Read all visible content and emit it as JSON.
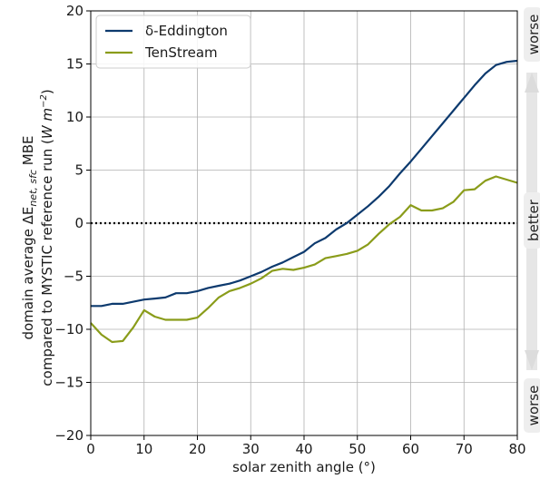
{
  "chart_data": {
    "type": "line",
    "xlabel": "solar zenith angle (°)",
    "ylabel_line1": "domain average ΔE",
    "ylabel_sub": "net, sfc",
    "ylabel_suffix": " MBE",
    "ylabel_line2_prefix": "compared to MYSTIC reference run (",
    "ylabel_unit_w": "W m",
    "ylabel_unit_exp": "−2",
    "ylabel_line2_suffix": ")",
    "xlim": [
      0,
      80
    ],
    "ylim": [
      -20,
      20
    ],
    "xticks": [
      0,
      10,
      20,
      30,
      40,
      50,
      60,
      70,
      80
    ],
    "yticks": [
      -20,
      -15,
      -10,
      -5,
      0,
      5,
      10,
      15,
      20
    ],
    "ytick_labels": [
      "−20",
      "−15",
      "−10",
      "−5",
      "0",
      "5",
      "10",
      "15",
      "20"
    ],
    "grid": true,
    "legend_position": "top-left",
    "reference_line": {
      "y": 0,
      "style": "dotted",
      "color": "#000000"
    },
    "series": [
      {
        "name": "δ-Eddington",
        "color": "#0d3a6e",
        "x": [
          0,
          2,
          4,
          6,
          8,
          10,
          12,
          14,
          16,
          18,
          20,
          22,
          24,
          26,
          28,
          30,
          32,
          34,
          36,
          38,
          40,
          42,
          44,
          46,
          48,
          50,
          52,
          54,
          56,
          58,
          60,
          62,
          64,
          66,
          68,
          70,
          72,
          74,
          76,
          78,
          80
        ],
        "y": [
          -7.8,
          -7.8,
          -7.6,
          -7.6,
          -7.4,
          -7.2,
          -7.1,
          -7.0,
          -6.6,
          -6.6,
          -6.4,
          -6.1,
          -5.9,
          -5.7,
          -5.4,
          -5.0,
          -4.6,
          -4.1,
          -3.7,
          -3.2,
          -2.7,
          -1.9,
          -1.4,
          -0.6,
          0.0,
          0.8,
          1.6,
          2.5,
          3.5,
          4.7,
          5.8,
          7.0,
          8.2,
          9.4,
          10.6,
          11.8,
          13.0,
          14.1,
          14.9,
          15.2,
          15.3
        ]
      },
      {
        "name": "TenStream",
        "color": "#8a9c1a",
        "x": [
          0,
          2,
          4,
          6,
          8,
          10,
          12,
          14,
          16,
          18,
          20,
          22,
          24,
          26,
          28,
          30,
          32,
          34,
          36,
          38,
          40,
          42,
          44,
          46,
          48,
          50,
          52,
          54,
          56,
          58,
          60,
          62,
          64,
          66,
          68,
          70,
          72,
          74,
          76,
          78,
          80
        ],
        "y": [
          -9.4,
          -10.5,
          -11.2,
          -11.1,
          -9.8,
          -8.2,
          -8.8,
          -9.1,
          -9.1,
          -9.1,
          -8.9,
          -8.0,
          -7.0,
          -6.4,
          -6.1,
          -5.7,
          -5.2,
          -4.5,
          -4.3,
          -4.4,
          -4.2,
          -3.9,
          -3.3,
          -3.1,
          -2.9,
          -2.6,
          -2.0,
          -1.0,
          -0.1,
          0.6,
          1.7,
          1.2,
          1.2,
          1.4,
          2.0,
          3.1,
          3.2,
          4.0,
          4.4,
          4.1,
          3.8
        ]
      }
    ],
    "side_labels": {
      "top": "worse",
      "middle": "better",
      "bottom": "worse"
    }
  }
}
